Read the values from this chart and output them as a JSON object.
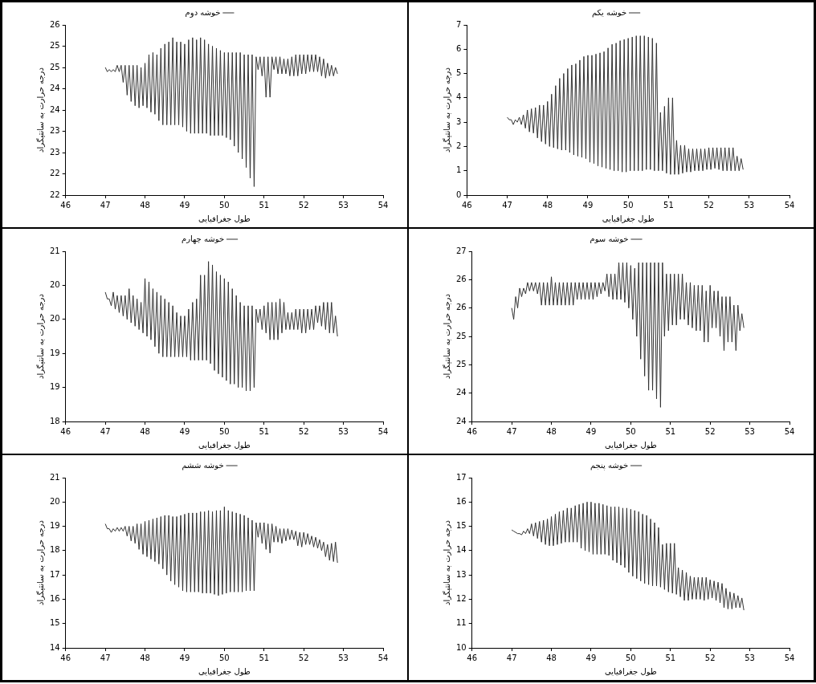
{
  "chart_data": [
    {
      "type": "line",
      "xlabel": "طول جغرافیایی",
      "ylabel": "درجه حرارت به سانتیگراد",
      "legend": "top",
      "marker": "none",
      "line_style": "solid",
      "xlim": [
        46,
        54
      ],
      "xticks": [
        46,
        47,
        48,
        49,
        50,
        51,
        52,
        53,
        54
      ],
      "ylim": [
        21.5,
        25.5
      ],
      "yticks": [
        {
          "value": 21.5,
          "label": "22"
        },
        22,
        {
          "value": 22.5,
          "label": "23"
        },
        23,
        {
          "value": 23.5,
          "label": "24"
        },
        24,
        {
          "value": 24.5,
          "label": "25"
        },
        25,
        {
          "value": 25.5,
          "label": "26"
        }
      ],
      "x": [
        47,
        47.05,
        47.1,
        47.15,
        47.2,
        47.25,
        47.3,
        47.35,
        47.4,
        47.45,
        47.5,
        47.55,
        47.6,
        47.65,
        47.7,
        47.75,
        47.8,
        47.85,
        47.9,
        47.95,
        48,
        48.05,
        48.1,
        48.15,
        48.2,
        48.25,
        48.3,
        48.35,
        48.4,
        48.45,
        48.5,
        48.55,
        48.6,
        48.65,
        48.7,
        48.75,
        48.8,
        48.85,
        48.9,
        48.95,
        49,
        49.05,
        49.1,
        49.15,
        49.2,
        49.25,
        49.3,
        49.35,
        49.4,
        49.45,
        49.5,
        49.55,
        49.6,
        49.65,
        49.7,
        49.75,
        49.8,
        49.85,
        49.9,
        49.95,
        50,
        50.05,
        50.1,
        50.15,
        50.2,
        50.25,
        50.3,
        50.35,
        50.4,
        50.45,
        50.5,
        50.55,
        50.6,
        50.65,
        50.7,
        50.75,
        50.8,
        50.85,
        50.9,
        50.95,
        51,
        51.05,
        51.1,
        51.15,
        51.2,
        51.25,
        51.3,
        51.35,
        51.4,
        51.45,
        51.5,
        51.55,
        51.6,
        51.65,
        51.7,
        51.75,
        51.8,
        51.85,
        51.9,
        51.95,
        52,
        52.05,
        52.1,
        52.15,
        52.2,
        52.25,
        52.3,
        52.35,
        52.4,
        52.45,
        52.5,
        52.55,
        52.6,
        52.65,
        52.7,
        52.75,
        52.8,
        52.85
      ],
      "series": [
        {
          "name": "خوشه دوم",
          "color": "#333333",
          "values": [
            24.5,
            24.4,
            24.45,
            24.4,
            24.45,
            24.4,
            24.55,
            24.4,
            24.55,
            24.15,
            24.55,
            23.85,
            24.55,
            23.7,
            24.55,
            23.6,
            24.55,
            23.55,
            24.5,
            23.6,
            24.6,
            23.55,
            24.8,
            23.45,
            24.85,
            23.4,
            24.8,
            23.25,
            24.95,
            23.15,
            25.05,
            23.15,
            25.1,
            23.15,
            25.2,
            23.15,
            25.1,
            23.15,
            25.1,
            23.1,
            25.05,
            23.0,
            25.15,
            22.95,
            25.2,
            22.95,
            25.15,
            22.95,
            25.2,
            22.95,
            25.15,
            22.95,
            25.05,
            22.9,
            25.0,
            22.9,
            24.95,
            22.9,
            24.9,
            22.9,
            24.85,
            22.85,
            24.85,
            22.8,
            24.85,
            22.65,
            24.85,
            22.5,
            24.85,
            22.35,
            24.8,
            22.15,
            24.8,
            21.9,
            24.8,
            21.7,
            24.75,
            24.45,
            24.75,
            24.3,
            24.75,
            23.8,
            24.75,
            23.8,
            24.75,
            24.45,
            24.75,
            24.35,
            24.75,
            24.35,
            24.7,
            24.35,
            24.7,
            24.3,
            24.75,
            24.3,
            24.8,
            24.3,
            24.8,
            24.35,
            24.8,
            24.35,
            24.8,
            24.4,
            24.8,
            24.4,
            24.8,
            24.4,
            24.75,
            24.3,
            24.7,
            24.25,
            24.6,
            24.3,
            24.55,
            24.3,
            24.5,
            24.35
          ]
        }
      ]
    },
    {
      "type": "line",
      "xlabel": "طول جغرافیایی",
      "ylabel": "درجه حرارت به سانتیگراد",
      "legend": "top",
      "marker": "none",
      "line_style": "solid",
      "xlim": [
        46,
        54
      ],
      "xticks": [
        46,
        47,
        48,
        49,
        50,
        51,
        52,
        53,
        54
      ],
      "ylim": [
        0,
        7
      ],
      "yticks": [
        0,
        1,
        2,
        3,
        4,
        5,
        6,
        7
      ],
      "x": [
        47,
        47.05,
        47.1,
        47.15,
        47.2,
        47.25,
        47.3,
        47.35,
        47.4,
        47.45,
        47.5,
        47.55,
        47.6,
        47.65,
        47.7,
        47.75,
        47.8,
        47.85,
        47.9,
        47.95,
        48,
        48.05,
        48.1,
        48.15,
        48.2,
        48.25,
        48.3,
        48.35,
        48.4,
        48.45,
        48.5,
        48.55,
        48.6,
        48.65,
        48.7,
        48.75,
        48.8,
        48.85,
        48.9,
        48.95,
        49,
        49.05,
        49.1,
        49.15,
        49.2,
        49.25,
        49.3,
        49.35,
        49.4,
        49.45,
        49.5,
        49.55,
        49.6,
        49.65,
        49.7,
        49.75,
        49.8,
        49.85,
        49.9,
        49.95,
        50,
        50.05,
        50.1,
        50.15,
        50.2,
        50.25,
        50.3,
        50.35,
        50.4,
        50.45,
        50.5,
        50.55,
        50.6,
        50.65,
        50.7,
        50.75,
        50.8,
        50.85,
        50.9,
        50.95,
        51,
        51.05,
        51.1,
        51.15,
        51.2,
        51.25,
        51.3,
        51.35,
        51.4,
        51.45,
        51.5,
        51.55,
        51.6,
        51.65,
        51.7,
        51.75,
        51.8,
        51.85,
        51.9,
        51.95,
        52,
        52.05,
        52.1,
        52.15,
        52.2,
        52.25,
        52.3,
        52.35,
        52.4,
        52.45,
        52.5,
        52.55,
        52.6,
        52.65,
        52.7,
        52.75,
        52.8,
        52.85
      ],
      "series": [
        {
          "name": "خوشه یکم",
          "color": "#333333",
          "values": [
            3.2,
            3.1,
            3.1,
            2.9,
            3.1,
            3.0,
            3.2,
            2.9,
            3.3,
            2.75,
            3.5,
            2.6,
            3.55,
            2.55,
            3.6,
            2.35,
            3.7,
            2.2,
            3.7,
            2.1,
            3.85,
            2.0,
            4.15,
            1.95,
            4.5,
            1.9,
            4.8,
            1.85,
            5.0,
            1.85,
            5.2,
            1.75,
            5.35,
            1.65,
            5.4,
            1.6,
            5.55,
            1.55,
            5.7,
            1.5,
            5.75,
            1.35,
            5.75,
            1.3,
            5.8,
            1.2,
            5.85,
            1.15,
            5.9,
            1.1,
            6.05,
            1.05,
            6.2,
            1.0,
            6.25,
            1.0,
            6.35,
            0.95,
            6.4,
            0.95,
            6.45,
            1.0,
            6.5,
            1.0,
            6.55,
            1.0,
            6.55,
            1.0,
            6.55,
            1.05,
            6.5,
            1.05,
            6.45,
            1.0,
            6.25,
            1.0,
            3.4,
            1.0,
            3.65,
            0.9,
            4.0,
            0.85,
            4.0,
            0.85,
            2.25,
            0.85,
            2.05,
            0.9,
            2.05,
            0.95,
            1.9,
            0.95,
            1.9,
            1.0,
            1.9,
            1.0,
            1.9,
            1.0,
            1.9,
            1.05,
            1.95,
            1.05,
            1.95,
            1.1,
            1.95,
            1.05,
            1.95,
            1.0,
            1.95,
            1.0,
            1.95,
            1.0,
            1.95,
            1.0,
            1.6,
            1.0,
            1.5,
            1.05
          ]
        }
      ]
    },
    {
      "type": "line",
      "xlabel": "طول جغرافیایی",
      "ylabel": "درجه حرارت به سانتیگراد",
      "legend": "top",
      "marker": "none",
      "line_style": "solid",
      "xlim": [
        46,
        54
      ],
      "xticks": [
        46,
        47,
        48,
        49,
        50,
        51,
        52,
        53,
        54
      ],
      "ylim": [
        18,
        20.5
      ],
      "yticks": [
        18,
        {
          "value": 18.5,
          "label": "19"
        },
        19,
        {
          "value": 19.5,
          "label": "20"
        },
        20,
        {
          "value": 20.5,
          "label": "21"
        }
      ],
      "x": [
        47,
        47.05,
        47.1,
        47.15,
        47.2,
        47.25,
        47.3,
        47.35,
        47.4,
        47.45,
        47.5,
        47.55,
        47.6,
        47.65,
        47.7,
        47.75,
        47.8,
        47.85,
        47.9,
        47.95,
        48,
        48.05,
        48.1,
        48.15,
        48.2,
        48.25,
        48.3,
        48.35,
        48.4,
        48.45,
        48.5,
        48.55,
        48.6,
        48.65,
        48.7,
        48.75,
        48.8,
        48.85,
        48.9,
        48.95,
        49,
        49.05,
        49.1,
        49.15,
        49.2,
        49.25,
        49.3,
        49.35,
        49.4,
        49.45,
        49.5,
        49.55,
        49.6,
        49.65,
        49.7,
        49.75,
        49.8,
        49.85,
        49.9,
        49.95,
        50,
        50.05,
        50.1,
        50.15,
        50.2,
        50.25,
        50.3,
        50.35,
        50.4,
        50.45,
        50.5,
        50.55,
        50.6,
        50.65,
        50.7,
        50.75,
        50.8,
        50.85,
        50.9,
        50.95,
        51,
        51.05,
        51.1,
        51.15,
        51.2,
        51.25,
        51.3,
        51.35,
        51.4,
        51.45,
        51.5,
        51.55,
        51.6,
        51.65,
        51.7,
        51.75,
        51.8,
        51.85,
        51.9,
        51.95,
        52,
        52.05,
        52.1,
        52.15,
        52.2,
        52.25,
        52.3,
        52.35,
        52.4,
        52.45,
        52.5,
        52.55,
        52.6,
        52.65,
        52.7,
        52.75,
        52.8,
        52.85
      ],
      "series": [
        {
          "name": "خوشه چهارم",
          "color": "#333333",
          "values": [
            19.9,
            19.8,
            19.8,
            19.7,
            19.9,
            19.65,
            19.85,
            19.6,
            19.85,
            19.55,
            19.85,
            19.5,
            19.95,
            19.45,
            19.85,
            19.4,
            19.8,
            19.35,
            19.75,
            19.3,
            20.1,
            19.25,
            20.05,
            19.2,
            19.95,
            19.1,
            19.9,
            19.0,
            19.85,
            18.95,
            19.8,
            18.95,
            19.75,
            18.95,
            19.7,
            18.95,
            19.6,
            18.95,
            19.55,
            18.95,
            19.55,
            18.95,
            19.65,
            18.9,
            19.75,
            18.9,
            19.8,
            18.9,
            20.15,
            18.9,
            20.15,
            18.9,
            20.35,
            18.85,
            20.3,
            18.75,
            20.2,
            18.7,
            20.15,
            18.65,
            20.1,
            18.6,
            20.05,
            18.55,
            19.95,
            18.55,
            19.85,
            18.5,
            19.75,
            18.5,
            19.7,
            18.45,
            19.7,
            18.45,
            19.7,
            18.5,
            19.65,
            19.45,
            19.65,
            19.35,
            19.7,
            19.3,
            19.75,
            19.2,
            19.75,
            19.2,
            19.75,
            19.2,
            19.8,
            19.3,
            19.75,
            19.35,
            19.6,
            19.35,
            19.6,
            19.35,
            19.65,
            19.35,
            19.65,
            19.3,
            19.65,
            19.3,
            19.65,
            19.35,
            19.65,
            19.35,
            19.7,
            19.45,
            19.7,
            19.4,
            19.75,
            19.35,
            19.75,
            19.3,
            19.75,
            19.3,
            19.55,
            19.25
          ]
        }
      ]
    },
    {
      "type": "line",
      "xlabel": "طول جغرافیایی",
      "ylabel": "درجه حرارت به سانتیگراد",
      "legend": "top",
      "marker": "none",
      "line_style": "solid",
      "xlim": [
        46,
        54
      ],
      "xticks": [
        46,
        47,
        48,
        49,
        50,
        51,
        52,
        53,
        54
      ],
      "ylim": [
        23.5,
        26.5
      ],
      "yticks": [
        {
          "value": 23.5,
          "label": "24"
        },
        24,
        {
          "value": 24.5,
          "label": "25"
        },
        25,
        {
          "value": 25.5,
          "label": "26"
        },
        26,
        {
          "value": 26.5,
          "label": "27"
        }
      ],
      "x": [
        47,
        47.05,
        47.1,
        47.15,
        47.2,
        47.25,
        47.3,
        47.35,
        47.4,
        47.45,
        47.5,
        47.55,
        47.6,
        47.65,
        47.7,
        47.75,
        47.8,
        47.85,
        47.9,
        47.95,
        48,
        48.05,
        48.1,
        48.15,
        48.2,
        48.25,
        48.3,
        48.35,
        48.4,
        48.45,
        48.5,
        48.55,
        48.6,
        48.65,
        48.7,
        48.75,
        48.8,
        48.85,
        48.9,
        48.95,
        49,
        49.05,
        49.1,
        49.15,
        49.2,
        49.25,
        49.3,
        49.35,
        49.4,
        49.45,
        49.5,
        49.55,
        49.6,
        49.65,
        49.7,
        49.75,
        49.8,
        49.85,
        49.9,
        49.95,
        50,
        50.05,
        50.1,
        50.15,
        50.2,
        50.25,
        50.3,
        50.35,
        50.4,
        50.45,
        50.5,
        50.55,
        50.6,
        50.65,
        50.7,
        50.75,
        50.8,
        50.85,
        50.9,
        50.95,
        51,
        51.05,
        51.1,
        51.15,
        51.2,
        51.25,
        51.3,
        51.35,
        51.4,
        51.45,
        51.5,
        51.55,
        51.6,
        51.65,
        51.7,
        51.75,
        51.8,
        51.85,
        51.9,
        51.95,
        52,
        52.05,
        52.1,
        52.15,
        52.2,
        52.25,
        52.3,
        52.35,
        52.4,
        52.45,
        52.5,
        52.55,
        52.6,
        52.65,
        52.7,
        52.75,
        52.8,
        52.85
      ],
      "series": [
        {
          "name": "خوشه سوم",
          "color": "#333333",
          "values": [
            25.5,
            25.3,
            25.7,
            25.5,
            25.85,
            25.7,
            25.85,
            25.75,
            25.95,
            25.8,
            25.95,
            25.8,
            25.95,
            25.75,
            25.95,
            25.55,
            25.95,
            25.55,
            25.95,
            25.55,
            26.05,
            25.55,
            25.95,
            25.55,
            25.95,
            25.55,
            25.95,
            25.55,
            25.95,
            25.55,
            25.95,
            25.55,
            25.95,
            25.65,
            25.95,
            25.65,
            25.95,
            25.65,
            25.95,
            25.65,
            25.95,
            25.65,
            25.95,
            25.7,
            25.95,
            25.75,
            25.95,
            25.8,
            26.1,
            25.7,
            26.1,
            25.65,
            26.1,
            25.65,
            26.3,
            25.65,
            26.3,
            25.6,
            26.3,
            25.5,
            26.25,
            25.3,
            26.2,
            25.0,
            26.3,
            24.6,
            26.3,
            24.3,
            26.3,
            24.05,
            26.3,
            24.05,
            26.3,
            23.9,
            26.3,
            23.75,
            26.3,
            25.0,
            26.1,
            25.1,
            26.1,
            25.2,
            26.1,
            25.2,
            26.1,
            25.3,
            26.1,
            25.3,
            25.95,
            25.2,
            25.95,
            25.15,
            25.9,
            25.1,
            25.9,
            25.1,
            25.9,
            24.9,
            25.8,
            24.9,
            25.9,
            25.15,
            25.8,
            25.15,
            25.8,
            25.0,
            25.7,
            24.75,
            25.7,
            24.9,
            25.7,
            24.9,
            25.55,
            24.75,
            25.55,
            25.1,
            25.4,
            25.15
          ]
        }
      ]
    },
    {
      "type": "line",
      "xlabel": "طول جغرافیایی",
      "ylabel": "درجه حرارت به سانتیگراد",
      "legend": "top",
      "marker": "none",
      "line_style": "solid",
      "xlim": [
        46,
        54
      ],
      "xticks": [
        46,
        47,
        48,
        49,
        50,
        51,
        52,
        53,
        54
      ],
      "ylim": [
        14,
        21
      ],
      "yticks": [
        14,
        15,
        16,
        17,
        18,
        19,
        20,
        21
      ],
      "x": [
        47,
        47.05,
        47.1,
        47.15,
        47.2,
        47.25,
        47.3,
        47.35,
        47.4,
        47.45,
        47.5,
        47.55,
        47.6,
        47.65,
        47.7,
        47.75,
        47.8,
        47.85,
        47.9,
        47.95,
        48,
        48.05,
        48.1,
        48.15,
        48.2,
        48.25,
        48.3,
        48.35,
        48.4,
        48.45,
        48.5,
        48.55,
        48.6,
        48.65,
        48.7,
        48.75,
        48.8,
        48.85,
        48.9,
        48.95,
        49,
        49.05,
        49.1,
        49.15,
        49.2,
        49.25,
        49.3,
        49.35,
        49.4,
        49.45,
        49.5,
        49.55,
        49.6,
        49.65,
        49.7,
        49.75,
        49.8,
        49.85,
        49.9,
        49.95,
        50,
        50.05,
        50.1,
        50.15,
        50.2,
        50.25,
        50.3,
        50.35,
        50.4,
        50.45,
        50.5,
        50.55,
        50.6,
        50.65,
        50.7,
        50.75,
        50.8,
        50.85,
        50.9,
        50.95,
        51,
        51.05,
        51.1,
        51.15,
        51.2,
        51.25,
        51.3,
        51.35,
        51.4,
        51.45,
        51.5,
        51.55,
        51.6,
        51.65,
        51.7,
        51.75,
        51.8,
        51.85,
        51.9,
        51.95,
        52,
        52.05,
        52.1,
        52.15,
        52.2,
        52.25,
        52.3,
        52.35,
        52.4,
        52.45,
        52.5,
        52.55,
        52.6,
        52.65,
        52.7,
        52.75,
        52.8,
        52.85
      ],
      "series": [
        {
          "name": "خوشه ششم",
          "color": "#333333",
          "values": [
            19.1,
            18.9,
            18.9,
            18.75,
            18.9,
            18.8,
            18.95,
            18.8,
            18.95,
            18.8,
            19.0,
            18.6,
            19.0,
            18.4,
            19.0,
            18.3,
            19.1,
            18.05,
            19.1,
            17.85,
            19.2,
            17.75,
            19.25,
            17.65,
            19.3,
            17.55,
            19.35,
            17.45,
            19.4,
            17.25,
            19.45,
            17.0,
            19.45,
            16.75,
            19.4,
            16.6,
            19.4,
            16.5,
            19.45,
            16.35,
            19.5,
            16.3,
            19.55,
            16.3,
            19.55,
            16.3,
            19.55,
            16.3,
            19.6,
            16.25,
            19.6,
            16.25,
            19.65,
            16.25,
            19.6,
            16.2,
            19.65,
            16.15,
            19.65,
            16.2,
            19.8,
            16.25,
            19.65,
            16.3,
            19.6,
            16.3,
            19.55,
            16.3,
            19.5,
            16.3,
            19.45,
            16.35,
            19.35,
            16.35,
            19.25,
            16.35,
            19.15,
            18.55,
            19.15,
            18.3,
            19.15,
            18.05,
            19.1,
            17.9,
            19.1,
            18.35,
            19.0,
            18.35,
            18.9,
            18.3,
            18.9,
            18.4,
            18.9,
            18.45,
            18.85,
            18.45,
            18.8,
            18.2,
            18.75,
            18.15,
            18.75,
            18.25,
            18.7,
            18.25,
            18.6,
            18.15,
            18.55,
            18.1,
            18.45,
            18.0,
            18.35,
            17.75,
            18.25,
            17.6,
            18.3,
            17.55,
            18.35,
            17.5
          ]
        }
      ]
    },
    {
      "type": "line",
      "xlabel": "طول جغرافیایی",
      "ylabel": "درجه حرارت به سانتیگراد",
      "legend": "top",
      "marker": "none",
      "line_style": "solid",
      "xlim": [
        46,
        54
      ],
      "xticks": [
        46,
        47,
        48,
        49,
        50,
        51,
        52,
        53,
        54
      ],
      "ylim": [
        10,
        17
      ],
      "yticks": [
        10,
        11,
        12,
        13,
        14,
        15,
        16,
        17
      ],
      "x": [
        47,
        47.05,
        47.1,
        47.15,
        47.2,
        47.25,
        47.3,
        47.35,
        47.4,
        47.45,
        47.5,
        47.55,
        47.6,
        47.65,
        47.7,
        47.75,
        47.8,
        47.85,
        47.9,
        47.95,
        48,
        48.05,
        48.1,
        48.15,
        48.2,
        48.25,
        48.3,
        48.35,
        48.4,
        48.45,
        48.5,
        48.55,
        48.6,
        48.65,
        48.7,
        48.75,
        48.8,
        48.85,
        48.9,
        48.95,
        49,
        49.05,
        49.1,
        49.15,
        49.2,
        49.25,
        49.3,
        49.35,
        49.4,
        49.45,
        49.5,
        49.55,
        49.6,
        49.65,
        49.7,
        49.75,
        49.8,
        49.85,
        49.9,
        49.95,
        50,
        50.05,
        50.1,
        50.15,
        50.2,
        50.25,
        50.3,
        50.35,
        50.4,
        50.45,
        50.5,
        50.55,
        50.6,
        50.65,
        50.7,
        50.75,
        50.8,
        50.85,
        50.9,
        50.95,
        51,
        51.05,
        51.1,
        51.15,
        51.2,
        51.25,
        51.3,
        51.35,
        51.4,
        51.45,
        51.5,
        51.55,
        51.6,
        51.65,
        51.7,
        51.75,
        51.8,
        51.85,
        51.9,
        51.95,
        52,
        52.05,
        52.1,
        52.15,
        52.2,
        52.25,
        52.3,
        52.35,
        52.4,
        52.45,
        52.5,
        52.55,
        52.6,
        52.65,
        52.7,
        52.75,
        52.8,
        52.85
      ],
      "series": [
        {
          "name": "خوشه پنجم",
          "color": "#333333",
          "values": [
            14.85,
            14.8,
            14.75,
            14.7,
            14.7,
            14.65,
            14.8,
            14.7,
            14.9,
            14.7,
            15.1,
            14.6,
            15.15,
            14.5,
            15.2,
            14.35,
            15.25,
            14.25,
            15.3,
            14.2,
            15.4,
            14.2,
            15.5,
            14.25,
            15.6,
            14.3,
            15.65,
            14.35,
            15.75,
            14.35,
            15.75,
            14.35,
            15.85,
            14.35,
            15.9,
            14.1,
            15.95,
            14.0,
            16.0,
            13.95,
            16.0,
            13.85,
            15.95,
            13.85,
            15.95,
            13.85,
            15.9,
            13.85,
            15.85,
            13.8,
            15.8,
            13.6,
            15.8,
            13.5,
            15.8,
            13.4,
            15.75,
            13.3,
            15.75,
            13.1,
            15.7,
            12.95,
            15.65,
            12.85,
            15.6,
            12.75,
            15.5,
            12.65,
            15.45,
            12.6,
            15.3,
            12.55,
            15.15,
            12.55,
            14.95,
            12.5,
            14.25,
            12.4,
            14.3,
            12.3,
            14.3,
            12.25,
            14.3,
            12.2,
            13.3,
            12.1,
            13.2,
            11.95,
            13.1,
            11.95,
            12.95,
            12.0,
            12.9,
            12.0,
            12.9,
            12.0,
            12.9,
            11.95,
            12.9,
            12.0,
            12.8,
            12.05,
            12.75,
            11.95,
            12.7,
            11.85,
            12.65,
            11.65,
            12.45,
            11.6,
            12.3,
            11.6,
            12.25,
            11.65,
            12.15,
            11.65,
            12.05,
            11.55
          ]
        }
      ]
    }
  ]
}
